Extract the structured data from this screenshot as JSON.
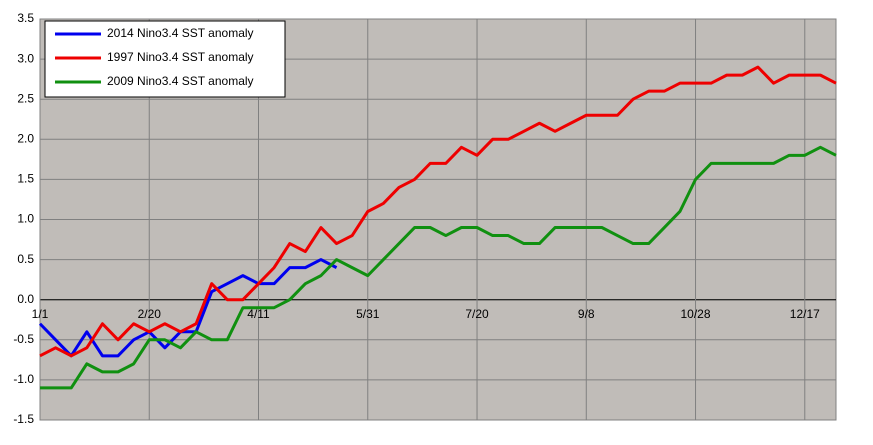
{
  "chart_data": {
    "type": "line",
    "categories": [
      "1/1",
      null,
      null,
      null,
      null,
      null,
      null,
      "2/20",
      null,
      null,
      null,
      null,
      null,
      null,
      "4/11",
      null,
      null,
      null,
      null,
      null,
      null,
      "5/31",
      null,
      null,
      null,
      null,
      null,
      null,
      "7/20",
      null,
      null,
      null,
      null,
      null,
      null,
      "9/8",
      null,
      null,
      null,
      null,
      null,
      null,
      "10/28",
      null,
      null,
      null,
      null,
      null,
      null,
      "12/17",
      null,
      null
    ],
    "series": [
      {
        "name": "2014 Nino3.4 SST anomaly",
        "color": "#0000ee",
        "values": [
          -0.3,
          -0.5,
          -0.7,
          -0.4,
          -0.7,
          -0.7,
          -0.5,
          -0.4,
          -0.6,
          -0.4,
          -0.4,
          0.1,
          0.2,
          0.3,
          0.2,
          0.2,
          0.4,
          0.4,
          0.5,
          0.4,
          null,
          null,
          null,
          null,
          null,
          null,
          null,
          null,
          null,
          null,
          null,
          null,
          null,
          null,
          null,
          null,
          null,
          null,
          null,
          null,
          null,
          null,
          null,
          null,
          null,
          null,
          null,
          null,
          null,
          null,
          null,
          null
        ]
      },
      {
        "name": "1997 Nino3.4 SST anomaly",
        "color": "#ee0000",
        "values": [
          -0.7,
          -0.6,
          -0.7,
          -0.6,
          -0.3,
          -0.5,
          -0.3,
          -0.4,
          -0.3,
          -0.4,
          -0.3,
          0.2,
          0.0,
          0.0,
          0.2,
          0.4,
          0.7,
          0.6,
          0.9,
          0.7,
          0.8,
          1.1,
          1.2,
          1.4,
          1.5,
          1.7,
          1.7,
          1.9,
          1.8,
          2.0,
          2.0,
          2.1,
          2.2,
          2.1,
          2.2,
          2.3,
          2.3,
          2.3,
          2.5,
          2.6,
          2.6,
          2.7,
          2.7,
          2.7,
          2.8,
          2.8,
          2.9,
          2.7,
          2.8,
          2.8,
          2.8,
          2.7
        ]
      },
      {
        "name": "2009 Nino3.4 SST anomaly",
        "color": "#109010",
        "values": [
          -1.1,
          -1.1,
          -1.1,
          -0.8,
          -0.9,
          -0.9,
          -0.8,
          -0.5,
          -0.5,
          -0.6,
          -0.4,
          -0.5,
          -0.5,
          -0.1,
          -0.1,
          -0.1,
          0.0,
          0.2,
          0.3,
          0.5,
          0.4,
          0.3,
          0.5,
          0.7,
          0.9,
          0.9,
          0.8,
          0.9,
          0.9,
          0.8,
          0.8,
          0.7,
          0.7,
          0.9,
          0.9,
          0.9,
          0.9,
          0.8,
          0.7,
          0.7,
          0.9,
          1.1,
          1.5,
          1.7,
          1.7,
          1.7,
          1.7,
          1.7,
          1.8,
          1.8,
          1.9,
          1.8
        ]
      }
    ],
    "ylim": [
      -1.5,
      3.5
    ],
    "yticks": [
      {
        "value": -1.5,
        "label": "-1.5"
      },
      {
        "value": -1,
        "label": "-1.0"
      },
      {
        "value": -0.5,
        "label": "-0.5"
      },
      {
        "value": 0,
        "label": "0.0"
      },
      {
        "value": 0.5,
        "label": "0.5"
      },
      {
        "value": 1,
        "label": "1.0"
      },
      {
        "value": 1.5,
        "label": "1.5"
      },
      {
        "value": 2,
        "label": "2.0"
      },
      {
        "value": 2.5,
        "label": "2.5"
      },
      {
        "value": 3,
        "label": "3.0"
      },
      {
        "value": 3.5,
        "label": "3.5"
      }
    ],
    "grid": true,
    "legend": "top-left",
    "background": "#c0bcb8"
  }
}
